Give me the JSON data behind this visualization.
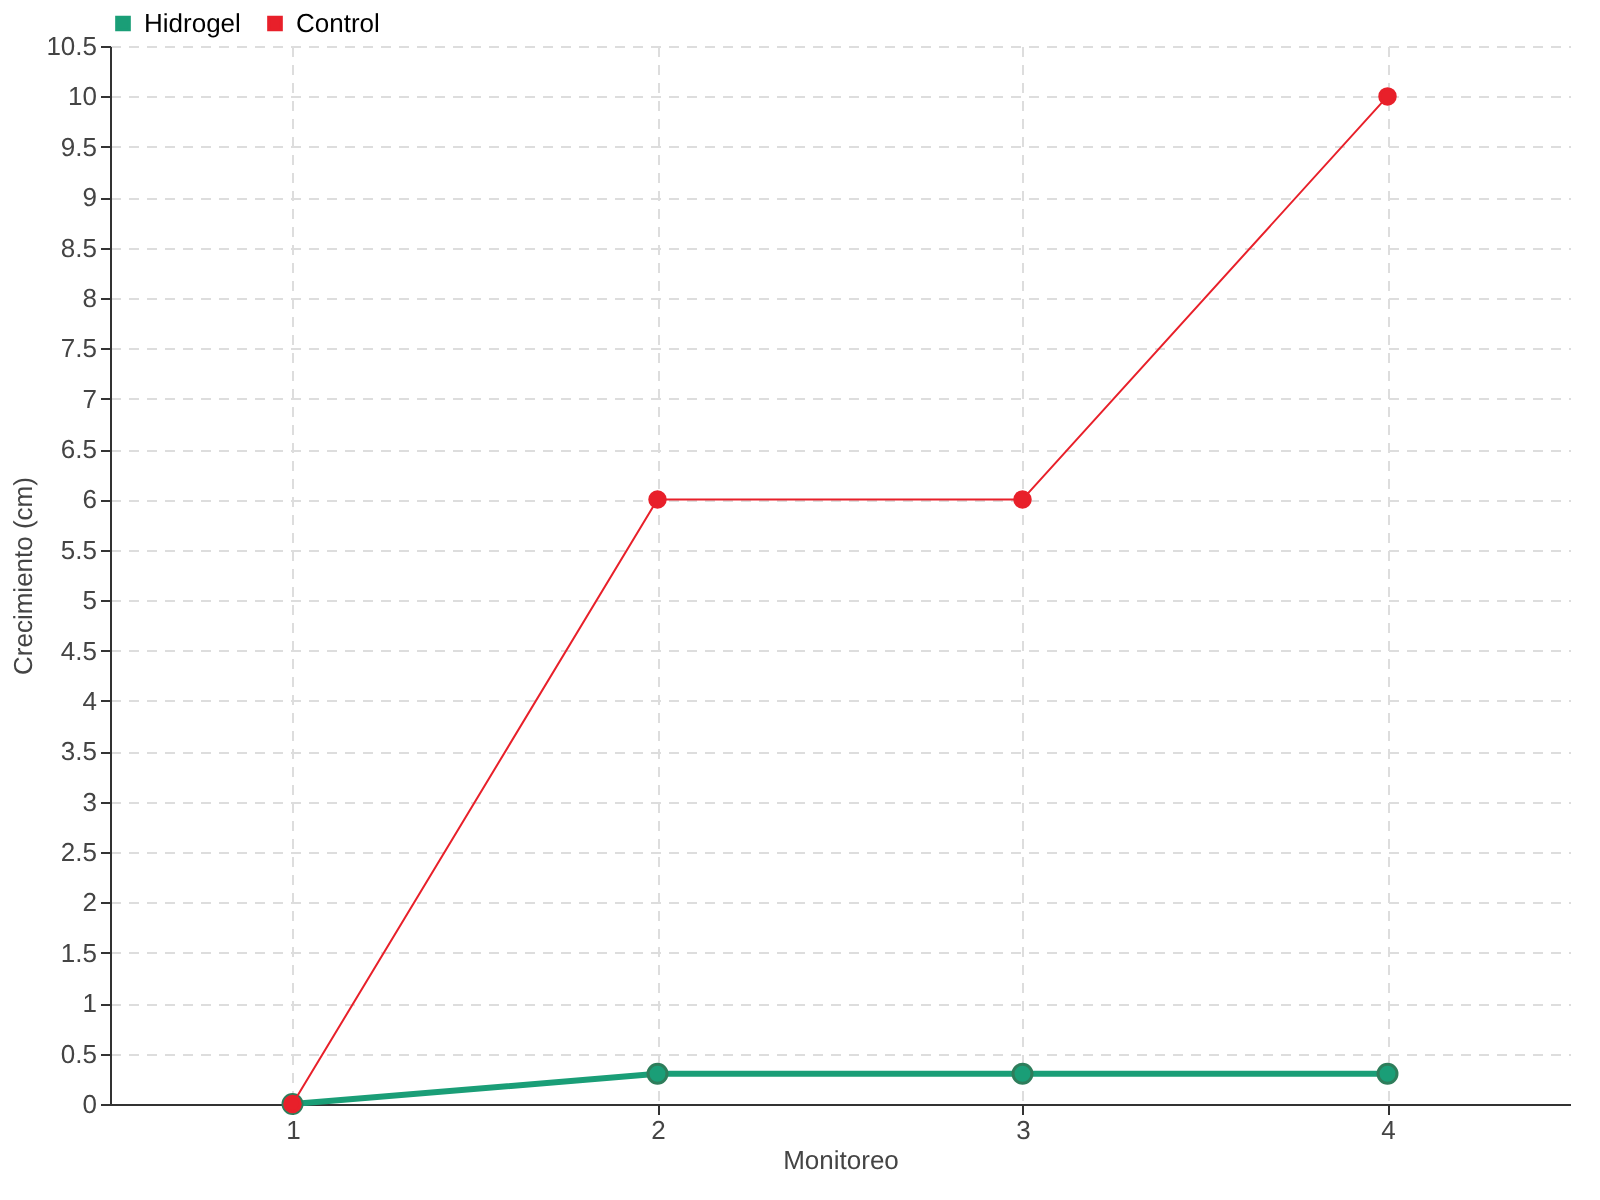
{
  "chart_data": {
    "type": "line",
    "xlabel": "Monitoreo",
    "ylabel": "Crecimiento (cm)",
    "categories": [
      "1",
      "2",
      "3",
      "4"
    ],
    "series": [
      {
        "name": "Hidrogel",
        "color": "#1a9e77",
        "values": [
          0,
          0.3,
          0.3,
          0.3
        ]
      },
      {
        "name": "Control",
        "color": "#e8202a",
        "values": [
          0,
          6,
          6,
          10
        ]
      }
    ],
    "ylim": [
      0,
      10.5
    ],
    "yticks": [
      0,
      0.5,
      1,
      1.5,
      2,
      2.5,
      3,
      3.5,
      4,
      4.5,
      5,
      5.5,
      6,
      6.5,
      7,
      7.5,
      8,
      8.5,
      9,
      9.5,
      10,
      10.5
    ],
    "grid": true,
    "legend": "top left",
    "marker": "circle",
    "line_style": "solid"
  }
}
